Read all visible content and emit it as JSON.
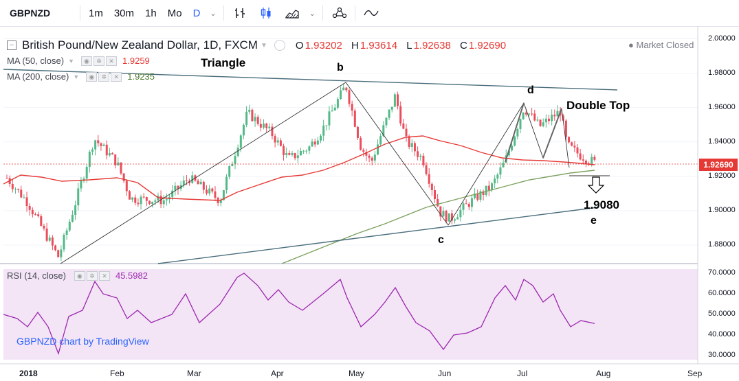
{
  "toolbar": {
    "symbol": "GBPNZD",
    "intervals": [
      "1m",
      "30m",
      "1h",
      "Mo",
      "D"
    ],
    "active_interval": "D"
  },
  "legend": {
    "title": "British Pound/New Zealand Dollar, 1D, FXCM",
    "open_label": "O",
    "open": "1.93202",
    "high_label": "H",
    "high": "1.93614",
    "low_label": "L",
    "low": "1.92638",
    "close_label": "C",
    "close": "1.92690",
    "market_status": "Market Closed",
    "ma50_label": "MA (50, close)",
    "ma50_value": "1.9259",
    "ma200_label": "MA (200, close)",
    "ma200_value": "1.9235",
    "rsi_label": "RSI (14, close)",
    "rsi_value": "45.5982"
  },
  "annotations": {
    "triangle": "Triangle",
    "b": "b",
    "c": "c",
    "d": "d",
    "e": "e",
    "double_top": "Double Top",
    "target": "1.9080"
  },
  "watermark": "GBPNZD chart by TradingView",
  "price_axis": [
    "2.00000",
    "1.98000",
    "1.96000",
    "1.94000",
    "1.92000",
    "1.90000",
    "1.88000"
  ],
  "rsi_axis": [
    "70.0000",
    "60.0000",
    "50.0000",
    "40.0000",
    "30.0000"
  ],
  "last_price_tag": "1.92690",
  "time_axis": [
    "2018",
    "Feb",
    "Mar",
    "Apr",
    "May",
    "Jun",
    "Jul",
    "Aug",
    "Sep"
  ],
  "colors": {
    "up": "#53b987",
    "down": "#eb4d5c",
    "ma50": "#e53935",
    "ma200": "#7ca15e",
    "rsi": "#9c27b0",
    "rsi_bg": "#f3e5f5"
  },
  "chart_data": {
    "type": "candlestick",
    "ylim": [
      1.87,
      2.005
    ],
    "rsi_ylim": [
      28,
      72
    ],
    "rsi_last": 45.5982,
    "ma50_last": 1.9259,
    "ma200_last": 1.9235,
    "close_last": 1.9269
  }
}
